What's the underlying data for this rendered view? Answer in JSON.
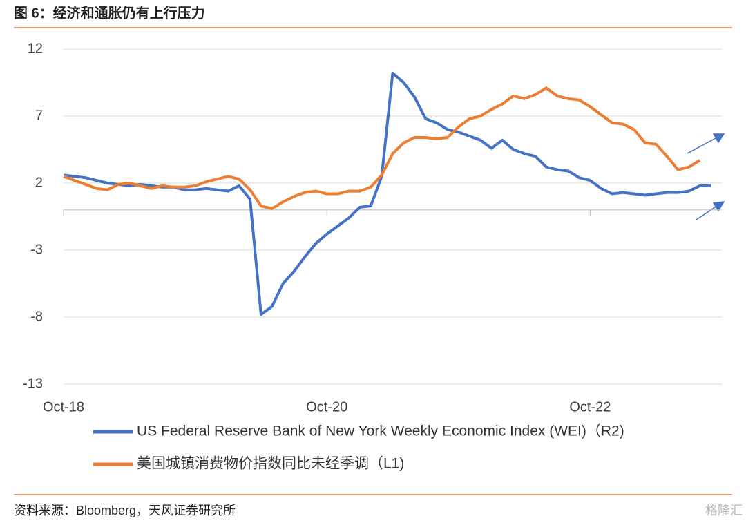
{
  "chart_data": {
    "type": "line",
    "title": "图 6：经济和通胀仍有上行压力",
    "source": "资料来源：Bloomberg，天风证券研究所",
    "watermark": "格隆汇",
    "x": [
      "2018-10",
      "2018-11",
      "2018-12",
      "2019-01",
      "2019-02",
      "2019-03",
      "2019-04",
      "2019-05",
      "2019-06",
      "2019-07",
      "2019-08",
      "2019-09",
      "2019-10",
      "2019-11",
      "2019-12",
      "2020-01",
      "2020-02",
      "2020-03",
      "2020-04",
      "2020-05",
      "2020-06",
      "2020-07",
      "2020-08",
      "2020-09",
      "2020-10",
      "2020-11",
      "2020-12",
      "2021-01",
      "2021-02",
      "2021-03",
      "2021-04",
      "2021-05",
      "2021-06",
      "2021-07",
      "2021-08",
      "2021-09",
      "2021-10",
      "2021-11",
      "2021-12",
      "2022-01",
      "2022-02",
      "2022-03",
      "2022-04",
      "2022-05",
      "2022-06",
      "2022-07",
      "2022-08",
      "2022-09",
      "2022-10",
      "2022-11",
      "2022-12",
      "2023-01",
      "2023-02",
      "2023-03",
      "2023-04",
      "2023-05",
      "2023-06",
      "2023-07",
      "2023-08",
      "2023-09"
    ],
    "series": [
      {
        "name": "US Federal Reserve Bank of New York Weekly Economic Index (WEI)（R2)",
        "color": "#4472c4",
        "values": [
          2.6,
          2.5,
          2.4,
          2.2,
          2.0,
          1.9,
          1.8,
          1.9,
          1.8,
          1.7,
          1.7,
          1.5,
          1.5,
          1.6,
          1.5,
          1.4,
          1.8,
          0.8,
          -7.8,
          -7.2,
          -5.5,
          -4.6,
          -3.5,
          -2.5,
          -1.8,
          -1.2,
          -0.6,
          0.2,
          0.3,
          2.5,
          10.2,
          9.5,
          8.4,
          6.8,
          6.5,
          6.0,
          5.8,
          5.5,
          5.2,
          4.6,
          5.2,
          4.5,
          4.2,
          4.0,
          3.2,
          3.0,
          2.9,
          2.4,
          2.2,
          1.6,
          1.2,
          1.3,
          1.2,
          1.1,
          1.2,
          1.3,
          1.3,
          1.4,
          1.8,
          1.8
        ]
      },
      {
        "name": "美国城镇消费物价指数同比未经季调（L1)",
        "color": "#ed7d31",
        "values": [
          2.5,
          2.2,
          1.9,
          1.6,
          1.5,
          1.9,
          2.0,
          1.8,
          1.6,
          1.8,
          1.7,
          1.7,
          1.8,
          2.1,
          2.3,
          2.5,
          2.3,
          1.5,
          0.3,
          0.1,
          0.6,
          1.0,
          1.3,
          1.4,
          1.2,
          1.2,
          1.4,
          1.4,
          1.7,
          2.6,
          4.2,
          5.0,
          5.4,
          5.4,
          5.3,
          5.4,
          6.2,
          6.8,
          7.0,
          7.5,
          7.9,
          8.5,
          8.3,
          8.6,
          9.1,
          8.5,
          8.3,
          8.2,
          7.7,
          7.1,
          6.5,
          6.4,
          6.0,
          5.0,
          4.9,
          4.0,
          3.0,
          3.2,
          3.7,
          null
        ]
      }
    ],
    "xlim": [
      "2018-10",
      "2023-10"
    ],
    "xticks": [
      {
        "value": "2018-10",
        "label": "Oct-18"
      },
      {
        "value": "2020-10",
        "label": "Oct-20"
      },
      {
        "value": "2022-10",
        "label": "Oct-22"
      }
    ],
    "ylim": [
      -13,
      12
    ],
    "yticks": [
      12,
      7,
      2,
      -3,
      -8,
      -13
    ],
    "grid": true
  }
}
